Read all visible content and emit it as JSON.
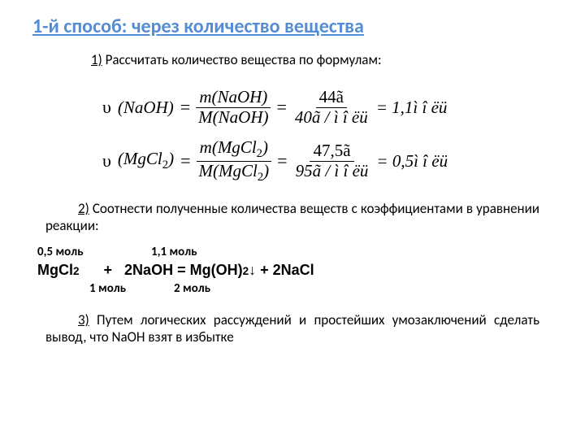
{
  "title": "1-й способ: через количество вещества",
  "step1": {
    "num": "1)",
    "text": " Рассчитать количество вещества по формулам:"
  },
  "formula1": {
    "left_u": "υ",
    "left_sub": "(NaOH)",
    "eq": "=",
    "f1_top": "m(NaOH)",
    "f1_bot": "M(NaOH)",
    "f2_top": "44ã",
    "f2_bot": "40ã / ì î ëü",
    "result": "= 1,1ì î ëü"
  },
  "formula2": {
    "left_u": "υ",
    "left_sub_a": "(MgCl",
    "left_sub_b": "2",
    "left_sub_c": ")",
    "eq": "=",
    "f1_top_a": "m(MgCl",
    "f1_top_b": "2",
    "f1_top_c": ")",
    "f1_bot_a": "M(MgCl",
    "f1_bot_b": "2",
    "f1_bot_c": ")",
    "f2_top": "47,5ã",
    "f2_bot": "95ã / ì î ëü",
    "result": "= 0,5ì î ëü"
  },
  "step2": {
    "num": "2)",
    "text": " Соотнести полученные количества веществ с коэффициентами  в уравнении реакции:"
  },
  "amounts_top": {
    "a1": "0,5 моль",
    "a2": "1,1 моль"
  },
  "equation": {
    "r1": "MgCl",
    "r1_sub": "2",
    "plus1": "      +   ",
    "r2": "2NaOH = Mg(OH)",
    "r2_sub": "2",
    "arrow": "↓ + ",
    "r3": "2NaCl"
  },
  "amounts_bot": {
    "a1": "1 моль",
    "a2": "2  моль"
  },
  "step3": {
    "num": "3)",
    "text": " Путем логических рассуждений и простейших умозаключений сделать вывод, что NaOH взят в избытке"
  },
  "colors": {
    "title": "#548dd4",
    "text": "#000000"
  }
}
